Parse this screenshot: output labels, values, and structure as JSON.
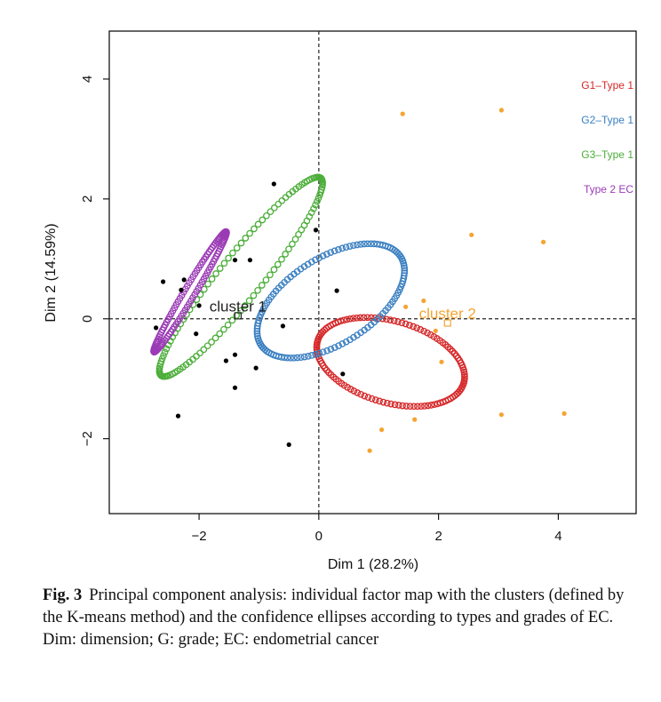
{
  "chart_data": {
    "type": "scatter",
    "xlabel": "Dim 1 (28.2%)",
    "ylabel": "Dim 2 (14.59%)",
    "xlim": [
      -3.5,
      5.3
    ],
    "ylim": [
      -3.25,
      4.8
    ],
    "x_ticks": [
      -2,
      0,
      2,
      4
    ],
    "y_ticks": [
      -2,
      0,
      2,
      4
    ],
    "x_tick_labels": [
      "−2",
      "0",
      "2",
      "4"
    ],
    "y_tick_labels": [
      "−2",
      "0",
      "2",
      "4"
    ],
    "reference_lines": {
      "x": 0,
      "y": 0,
      "style": "dashed"
    },
    "grid": false,
    "legend": {
      "placement": "top-right",
      "entries": [
        {
          "label": "G1–Type 1",
          "color": "#d62728"
        },
        {
          "label": "G2–Type 1",
          "color": "#3a7fc1"
        },
        {
          "label": "G3–Type 1",
          "color": "#4cae3a"
        },
        {
          "label": "Type 2 EC",
          "color": "#9b3bb5"
        }
      ]
    },
    "point_groups": [
      {
        "color": "#000000",
        "points": [
          [
            -2.6,
            0.62
          ],
          [
            -2.25,
            0.65
          ],
          [
            -2.3,
            0.48
          ],
          [
            -2.0,
            0.22
          ],
          [
            -2.05,
            -0.25
          ],
          [
            -1.4,
            0.98
          ],
          [
            -1.15,
            0.98
          ],
          [
            -0.75,
            2.25
          ],
          [
            -0.05,
            1.48
          ],
          [
            0.3,
            0.47
          ],
          [
            -1.05,
            -0.82
          ],
          [
            -1.4,
            -0.6
          ],
          [
            -1.55,
            -0.7
          ],
          [
            -0.6,
            -0.12
          ],
          [
            -1.4,
            -1.15
          ],
          [
            -2.35,
            -1.62
          ],
          [
            -0.5,
            -2.1
          ],
          [
            0.4,
            -0.92
          ],
          [
            -2.72,
            -0.15
          ]
        ]
      },
      {
        "color": "#f4a433",
        "points": [
          [
            1.4,
            3.42
          ],
          [
            3.05,
            3.48
          ],
          [
            2.55,
            1.4
          ],
          [
            3.75,
            1.28
          ],
          [
            1.75,
            0.3
          ],
          [
            1.45,
            0.2
          ],
          [
            1.95,
            -0.2
          ],
          [
            2.05,
            -0.72
          ],
          [
            1.6,
            -1.68
          ],
          [
            1.05,
            -1.85
          ],
          [
            0.85,
            -2.2
          ],
          [
            3.05,
            -1.6
          ],
          [
            4.1,
            -1.58
          ]
        ]
      }
    ],
    "cluster_centers": [
      {
        "label": "cluster 1",
        "x": -1.35,
        "y": 0.05,
        "color": "#222222"
      },
      {
        "label": "cluster 2",
        "x": 2.15,
        "y": -0.07,
        "color": "#f4a433"
      }
    ],
    "ellipses": [
      {
        "label": "G1–Type 1",
        "color": "#d62728",
        "cx": 1.2,
        "cy": -0.72,
        "rx": 1.27,
        "ry": 0.68,
        "angle_deg": -16
      },
      {
        "label": "G2–Type 1",
        "color": "#3a7fc1",
        "cx": 0.2,
        "cy": 0.3,
        "rx": 1.38,
        "ry": 0.72,
        "angle_deg": 32
      },
      {
        "label": "G3–Type 1",
        "color": "#4cae3a",
        "cx": -1.3,
        "cy": 0.7,
        "rx": 2.12,
        "ry": 0.36,
        "angle_deg": 51
      },
      {
        "label": "Type 2 EC",
        "color": "#9b3bb5",
        "cx": -2.15,
        "cy": 0.45,
        "rx": 1.17,
        "ry": 0.09,
        "angle_deg": 59
      }
    ]
  },
  "caption": {
    "label": "Fig. 3",
    "text": "Principal component analysis: individual factor map with the clusters (defined by the K-means method) and the confidence ellipses according to types and grades of EC. Dim: dimension; G: grade; EC: endometrial cancer"
  }
}
